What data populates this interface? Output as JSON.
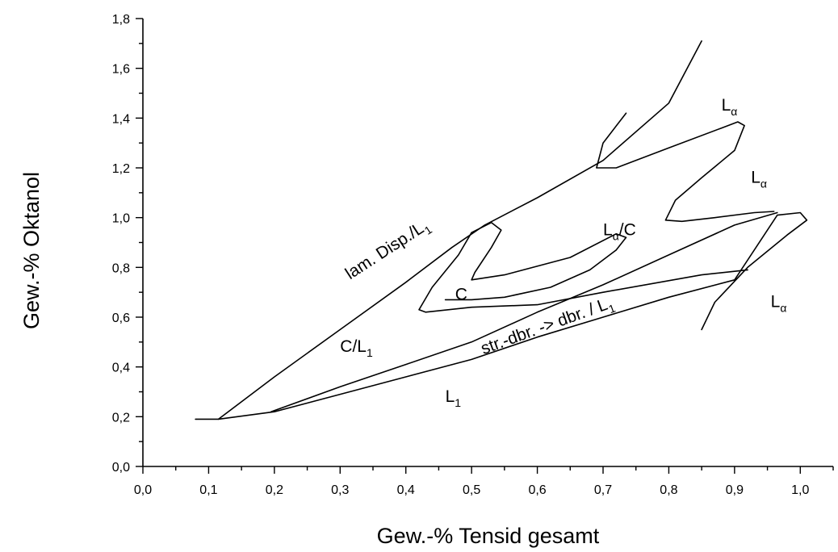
{
  "chart_data": {
    "type": "line",
    "title": "",
    "xlabel": "Gew.-% Tensid gesamt",
    "ylabel": "Gew.-% Oktanol",
    "xlim": [
      0.0,
      1.05
    ],
    "ylim": [
      0.0,
      1.8
    ],
    "x_ticks": [
      0.0,
      0.1,
      0.2,
      0.3,
      0.4,
      0.5,
      0.6,
      0.7,
      0.8,
      0.9,
      1.0
    ],
    "x_tick_labels": [
      "0,0",
      "0,1",
      "0,2",
      "0,3",
      "0,4",
      "0,5",
      "0,6",
      "0,7",
      "0,8",
      "0,9",
      "1,0"
    ],
    "y_ticks": [
      0.0,
      0.2,
      0.4,
      0.6,
      0.8,
      1.0,
      1.2,
      1.4,
      1.6,
      1.8
    ],
    "y_tick_labels": [
      "0,0",
      "0,2",
      "0,4",
      "0,6",
      "0,8",
      "1,0",
      "1,2",
      "1,4",
      "1,6",
      "1,8"
    ],
    "grid": false,
    "legend": "none",
    "series": [
      {
        "points": [
          [
            0.08,
            0.19
          ],
          [
            0.115,
            0.19
          ],
          [
            0.2,
            0.36
          ],
          [
            0.3,
            0.55
          ],
          [
            0.4,
            0.74
          ],
          [
            0.47,
            0.88
          ],
          [
            0.52,
            0.97
          ],
          [
            0.6,
            1.08
          ],
          [
            0.7,
            1.23
          ],
          [
            0.8,
            1.46
          ],
          [
            0.85,
            1.71
          ]
        ]
      },
      {
        "points": [
          [
            0.115,
            0.19
          ],
          [
            0.2,
            0.22
          ],
          [
            0.3,
            0.29
          ],
          [
            0.4,
            0.36
          ],
          [
            0.5,
            0.43
          ],
          [
            0.6,
            0.52
          ],
          [
            0.7,
            0.6
          ],
          [
            0.8,
            0.68
          ],
          [
            0.9,
            0.75
          ],
          [
            0.965,
            1.01
          ],
          [
            1.0,
            1.02
          ],
          [
            1.01,
            0.99
          ],
          [
            0.98,
            0.93
          ],
          [
            0.92,
            0.8
          ],
          [
            0.87,
            0.66
          ],
          [
            0.85,
            0.55
          ]
        ]
      },
      {
        "points": [
          [
            0.195,
            0.22
          ],
          [
            0.3,
            0.32
          ],
          [
            0.4,
            0.41
          ],
          [
            0.5,
            0.5
          ],
          [
            0.6,
            0.62
          ],
          [
            0.7,
            0.73
          ],
          [
            0.8,
            0.85
          ],
          [
            0.9,
            0.97
          ],
          [
            0.965,
            1.02
          ]
        ]
      },
      {
        "points": [
          [
            0.92,
            0.79
          ],
          [
            0.85,
            0.77
          ],
          [
            0.7,
            0.7
          ],
          [
            0.6,
            0.65
          ],
          [
            0.5,
            0.64
          ],
          [
            0.43,
            0.62
          ],
          [
            0.42,
            0.63
          ],
          [
            0.44,
            0.72
          ],
          [
            0.48,
            0.85
          ],
          [
            0.5,
            0.94
          ],
          [
            0.53,
            0.98
          ],
          [
            0.545,
            0.95
          ],
          [
            0.53,
            0.88
          ],
          [
            0.505,
            0.78
          ],
          [
            0.5,
            0.75
          ],
          [
            0.55,
            0.77
          ],
          [
            0.65,
            0.84
          ],
          [
            0.72,
            0.935
          ],
          [
            0.735,
            0.92
          ],
          [
            0.72,
            0.87
          ],
          [
            0.68,
            0.79
          ],
          [
            0.62,
            0.72
          ],
          [
            0.55,
            0.68
          ],
          [
            0.5,
            0.67
          ],
          [
            0.46,
            0.67
          ]
        ]
      },
      {
        "points": [
          [
            0.735,
            1.42
          ],
          [
            0.7,
            1.3
          ],
          [
            0.69,
            1.2
          ],
          [
            0.72,
            1.2
          ],
          [
            0.8,
            1.28
          ],
          [
            0.88,
            1.36
          ],
          [
            0.905,
            1.385
          ],
          [
            0.915,
            1.37
          ],
          [
            0.9,
            1.27
          ],
          [
            0.85,
            1.16
          ],
          [
            0.81,
            1.07
          ],
          [
            0.795,
            0.99
          ],
          [
            0.82,
            0.985
          ],
          [
            0.87,
            1.0
          ],
          [
            0.93,
            1.02
          ],
          [
            0.96,
            1.025
          ]
        ]
      }
    ],
    "annotations": [
      {
        "text": "L",
        "sub": "α",
        "x": 0.88,
        "y": 1.43
      },
      {
        "text": "L",
        "sub": "α",
        "x": 0.925,
        "y": 1.14
      },
      {
        "text": "L",
        "sub": "α",
        "x": 0.955,
        "y": 0.64
      },
      {
        "text": "L",
        "sub": "α",
        "suffix": "/C",
        "x": 0.7,
        "y": 0.93
      },
      {
        "text": "C",
        "x": 0.475,
        "y": 0.67
      },
      {
        "text": "C/L",
        "sub": "1",
        "x": 0.3,
        "y": 0.46
      },
      {
        "text": "L",
        "sub": "1",
        "x": 0.46,
        "y": 0.26
      },
      {
        "text": "lam. Disp./L",
        "sub": "1",
        "x": 0.315,
        "y": 0.75,
        "rotation": -33
      },
      {
        "text": "str.-dbr. -> dbr. / L",
        "sub": "1",
        "x": 0.518,
        "y": 0.45,
        "rotation": -20
      }
    ]
  }
}
